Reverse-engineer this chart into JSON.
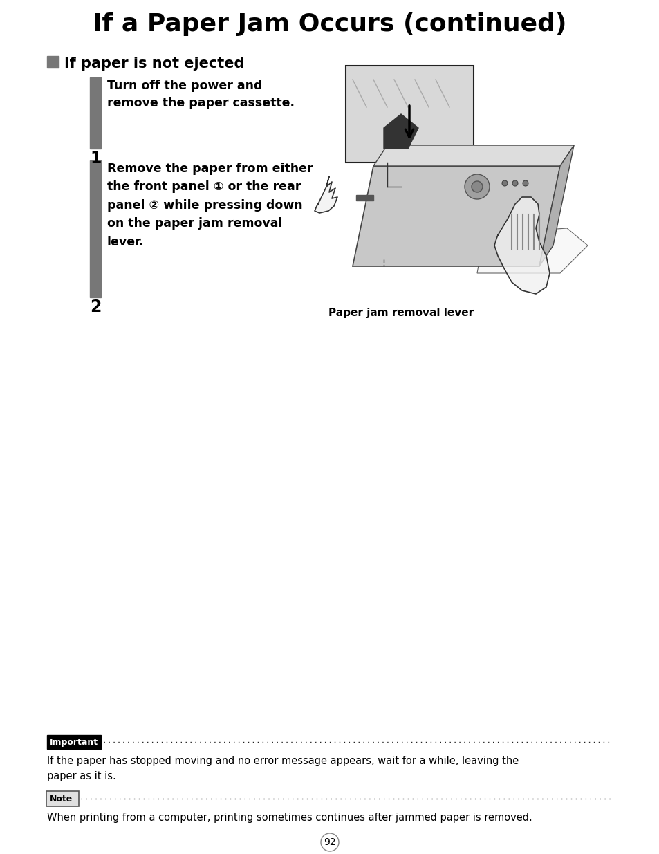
{
  "title": "If a Paper Jam Occurs (continued)",
  "section_header": "If paper is not ejected",
  "step1_text": "Turn off the power and\nremove the paper cassette.",
  "step2_text": "Remove the paper from either\nthe front panel ① or the rear\npanel ② while pressing down\non the paper jam removal\nlever.",
  "image_caption": "Paper jam removal lever",
  "important_label": "Important",
  "important_text": "If the paper has stopped moving and no error message appears, wait for a while, leaving the\npaper as it is.",
  "note_label": "Note",
  "note_text": "When printing from a computer, printing sometimes continues after jammed paper is removed.",
  "page_number": "92",
  "bg_color": "#ffffff",
  "text_color": "#000000",
  "gray_color": "#777777",
  "title_fontsize": 26,
  "section_fontsize": 15,
  "step_fontsize": 12.5,
  "body_fontsize": 10.5,
  "caption_fontsize": 11
}
